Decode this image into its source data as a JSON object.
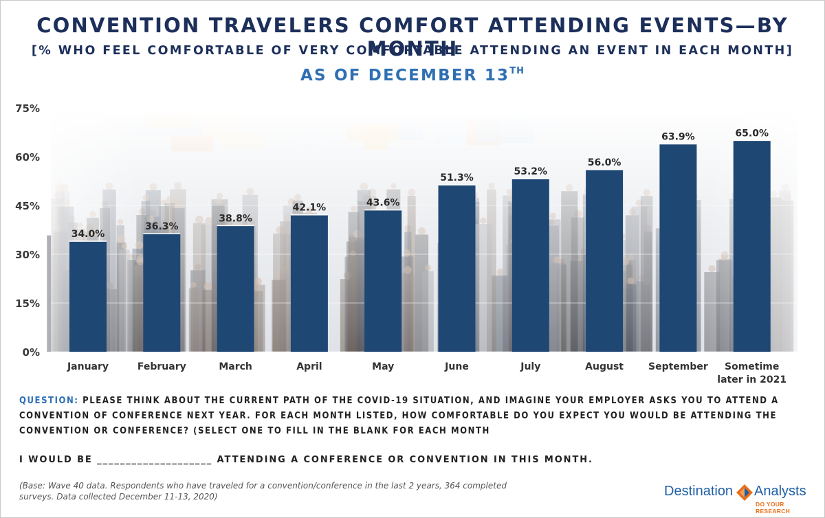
{
  "title": "CONVENTION TRAVELERS COMFORT ATTENDING EVENTS—BY MONTH",
  "subtitle": "[% WHO FEEL COMFORTABLE OF VERY COMFORTABLE ATTENDING AN EVENT IN EACH MONTH]",
  "as_of": {
    "text": "AS OF DECEMBER 13",
    "suffix": "TH"
  },
  "chart_data": {
    "type": "bar",
    "categories": [
      "January",
      "February",
      "March",
      "April",
      "May",
      "June",
      "July",
      "August",
      "September",
      "Sometime later in 2021"
    ],
    "values": [
      34.0,
      36.3,
      38.8,
      42.1,
      43.6,
      51.3,
      53.2,
      56.0,
      63.9,
      65.0
    ],
    "value_labels": [
      "34.0%",
      "36.3%",
      "38.8%",
      "42.1%",
      "43.6%",
      "51.3%",
      "53.2%",
      "56.0%",
      "63.9%",
      "65.0%"
    ],
    "yticks": [
      "0%",
      "15%",
      "30%",
      "45%",
      "60%",
      "75%"
    ],
    "ylim": [
      0,
      75
    ],
    "xlabel": "",
    "ylabel": "",
    "grid": true,
    "legend": "none",
    "bar_color": "#1f4774"
  },
  "question": {
    "label": "QUESTION:",
    "text": "PLEASE THINK ABOUT THE CURRENT PATH OF THE COVID-19 SITUATION, AND IMAGINE YOUR EMPLOYER ASKS YOU TO ATTEND A CONVENTION OF CONFERENCE NEXT YEAR. FOR EACH MONTH LISTED, HOW COMFORTABLE DO YOU EXPECT YOU WOULD BE ATTENDING THE CONVENTION OR CONFERENCE? (SELECT ONE TO FILL IN THE BLANK FOR EACH MONTH"
  },
  "fill_in": "I WOULD BE ____________________ ATTENDING A CONFERENCE OR CONVENTION IN THIS MONTH.",
  "base_note": "(Base: Wave 40 data. Respondents who have traveled for a convention/conference in the last 2 years, 364 completed surveys. Data collected December 11-13, 2020)",
  "logo": {
    "word1": "Destination",
    "word2": "Analysts",
    "tagline": "DO YOUR RESEARCH",
    "icon": "diamond-arrows-icon",
    "blue": "#1f5fa6",
    "orange": "#e8701a"
  },
  "background_image": "crowd-in-convention-hall-photo"
}
